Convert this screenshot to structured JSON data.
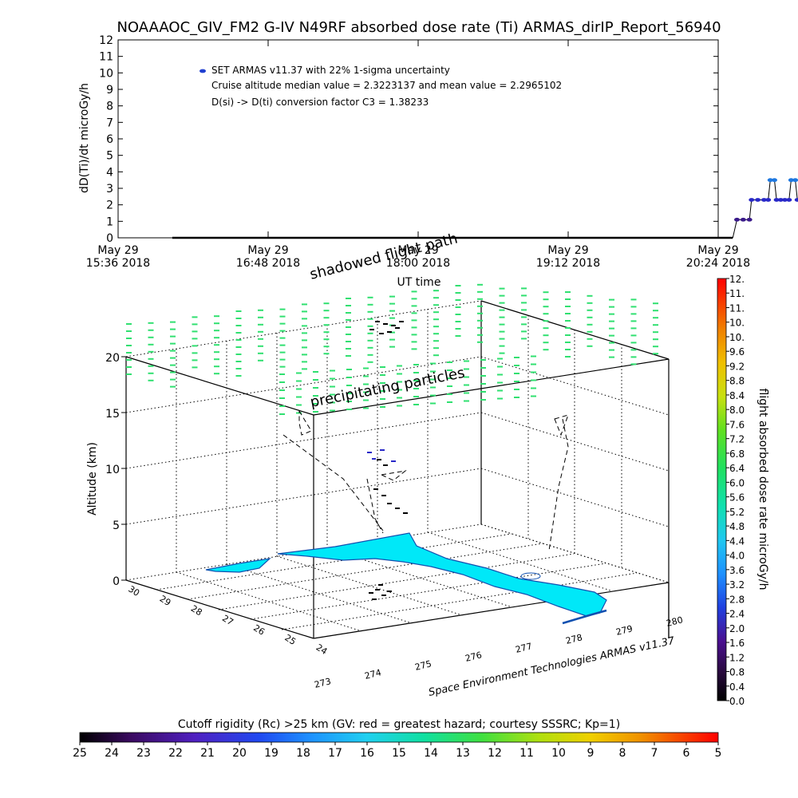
{
  "header": {
    "title": "NOAAAOC_GIV_FM2 G-IV    N49RF   absorbed dose rate (Ti) ARMAS_dirIP_Report_56940"
  },
  "chart_data": [
    {
      "type": "line",
      "ylabel": "dD(Ti)/dt microGy/h",
      "xlabel": "UT time",
      "ylim": [
        0,
        12
      ],
      "yticks": [
        "0",
        "1",
        "2",
        "3",
        "4",
        "5",
        "6",
        "7",
        "8",
        "9",
        "10",
        "11",
        "12"
      ],
      "xticks": [
        {
          "date": "May 29",
          "time": "15:36 2018"
        },
        {
          "date": "May 29",
          "time": "16:48 2018"
        },
        {
          "date": "May 29",
          "time": "18:00 2018"
        },
        {
          "date": "May 29",
          "time": "19:12 2018"
        },
        {
          "date": "May 29",
          "time": "20:24 2018"
        }
      ],
      "legend": [
        "SET ARMAS v11.37 with 22% 1-sigma uncertainty",
        "Cruise altitude median value = 2.3223137 and mean value = 2.2965102",
        "D(si) -> D(ti) conversion factor C3 = 1.38233"
      ],
      "series": [
        {
          "values_minutes_after_1536": [
            [
              26,
              0
            ],
            [
              40,
              0
            ],
            [
              60,
              0
            ],
            [
              80,
              0
            ],
            [
              100,
              0
            ],
            [
              120,
              0
            ],
            [
              140,
              0
            ],
            [
              160,
              0
            ],
            [
              180,
              0
            ],
            [
              200,
              0
            ],
            [
              220,
              0
            ],
            [
              240,
              0
            ],
            [
              260,
              0
            ],
            [
              280,
              0
            ],
            [
              295,
              0
            ],
            [
              297,
              1.1
            ],
            [
              300,
              1.1
            ],
            [
              303,
              1.1
            ],
            [
              304,
              2.3
            ],
            [
              307,
              2.3
            ],
            [
              310,
              2.3
            ],
            [
              312,
              2.3
            ],
            [
              313,
              3.5
            ],
            [
              315,
              3.5
            ],
            [
              316,
              2.3
            ],
            [
              318,
              2.3
            ],
            [
              320,
              2.3
            ],
            [
              322,
              2.3
            ],
            [
              323,
              3.5
            ],
            [
              325,
              3.5
            ],
            [
              326,
              2.3
            ],
            [
              328,
              2.3
            ],
            [
              329,
              1.1
            ],
            [
              331,
              1.1
            ],
            [
              333,
              1.1
            ],
            [
              334,
              2.3
            ],
            [
              335,
              2.3
            ],
            [
              336,
              1.1
            ],
            [
              338,
              1.1
            ],
            [
              340,
              1.1
            ],
            [
              341,
              2.3
            ],
            [
              343,
              2.3
            ],
            [
              345,
              2.3
            ],
            [
              347,
              2.3
            ],
            [
              349,
              2.3
            ],
            [
              351,
              2.3
            ],
            [
              352,
              3.5
            ],
            [
              354,
              3.5
            ],
            [
              355,
              2.3
            ],
            [
              356,
              3.5
            ],
            [
              358,
              3.5
            ],
            [
              360,
              3.5
            ],
            [
              361,
              2.3
            ],
            [
              362,
              3.5
            ],
            [
              363,
              3.5
            ],
            [
              364,
              2.3
            ],
            [
              366,
              2.3
            ],
            [
              368,
              2.3
            ],
            [
              370,
              2.3
            ],
            [
              372,
              2.3
            ],
            [
              374,
              2.3
            ]
          ],
          "error_bar": {
            "x_minutes_after_1536": 374,
            "low": 1.8,
            "high": 2.8
          }
        }
      ]
    },
    {
      "type": "scatter",
      "zlabel": "Altitude (km)",
      "zticks": [
        "0",
        "5",
        "10",
        "15",
        "20"
      ],
      "latitude_ticks": [
        "30",
        "29",
        "28",
        "27",
        "26",
        "25",
        "24"
      ],
      "longitude_ticks": [
        "273",
        "274",
        "275",
        "276",
        "277",
        "278",
        "279",
        "280"
      ],
      "annotations": [
        "shadowed flight path",
        "precipitating particles"
      ],
      "credit": "Space Environment Technologies ARMAS v11.37",
      "map_region": "Florida",
      "colorbar": {
        "label": "flight absorbed dose rate microGy/h",
        "ticks": [
          "0.0",
          "0.4",
          "0.8",
          "1.2",
          "1.6",
          "2.0",
          "2.4",
          "2.8",
          "3.2",
          "3.6",
          "4.0",
          "4.4",
          "4.8",
          "5.2",
          "5.6",
          "6.0",
          "6.4",
          "6.8",
          "7.2",
          "7.6",
          "8.0",
          "8.4",
          "8.8",
          "9.2",
          "9.6",
          "10.",
          "10.",
          "11.",
          "11.",
          "12."
        ]
      }
    },
    {
      "type": "heatmap",
      "title": "Cutoff rigidity (Rc) >25 km (GV: red = greatest hazard; courtesy SSSRC; Kp=1)",
      "ticks": [
        "25",
        "24",
        "23",
        "22",
        "21",
        "20",
        "19",
        "18",
        "17",
        "16",
        "15",
        "14",
        "13",
        "12",
        "11",
        "10",
        "9",
        "8",
        "7",
        "6",
        "5"
      ]
    }
  ],
  "colors": {
    "dose_low": "#2828c8",
    "dose_high": "#1e90ff",
    "rc_particles": "#30e070",
    "map_fill": "#00e8f8",
    "map_outline": "#1050b0"
  }
}
